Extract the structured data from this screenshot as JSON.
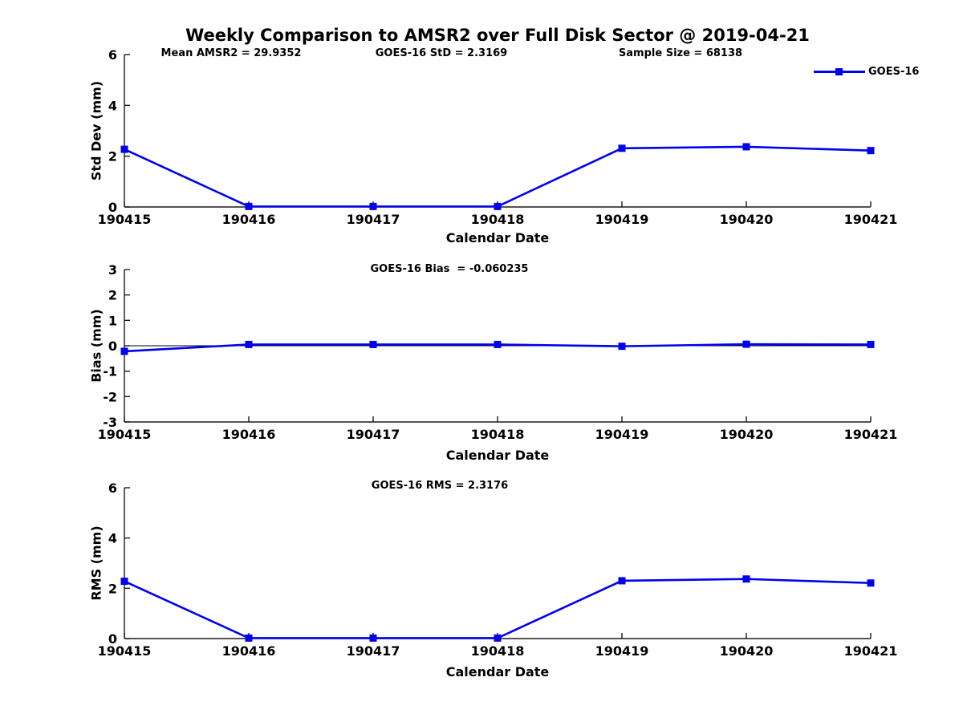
{
  "figure": {
    "title": "Weekly Comparison to AMSR2 over Full Disk Sector @ 2019-04-21"
  },
  "legend": {
    "label": "GOES-16"
  },
  "colors": {
    "line": "#0000ee",
    "marker": "#0000ee",
    "axis": "#1a1a1a",
    "zero_line": "#000000",
    "text": "#000000",
    "background": "#ffffff"
  },
  "chart_data": [
    {
      "type": "line",
      "categories": [
        "190415",
        "190416",
        "190417",
        "190418",
        "190419",
        "190420",
        "190421"
      ],
      "series": [
        {
          "name": "GOES-16",
          "values": [
            2.27,
            0.02,
            0.02,
            0.02,
            2.31,
            2.37,
            2.22
          ]
        }
      ],
      "xlabel": "Calendar Date",
      "ylabel": "Std Dev (mm)",
      "ylim": [
        0,
        6
      ],
      "yticks": [
        0,
        2,
        4,
        6
      ],
      "grid": false,
      "legend_position": "top-right",
      "zero_line": false,
      "annotations": [
        {
          "text": "Mean AMSR2 = 29.9352"
        },
        {
          "text": "GOES-16 StD = 2.3169"
        },
        {
          "text": "Sample Size = 68138"
        }
      ]
    },
    {
      "type": "line",
      "categories": [
        "190415",
        "190416",
        "190417",
        "190418",
        "190419",
        "190420",
        "190421"
      ],
      "series": [
        {
          "name": "GOES-16",
          "values": [
            -0.22,
            0.05,
            0.05,
            0.05,
            -0.02,
            0.06,
            0.05
          ]
        }
      ],
      "xlabel": "Calendar Date",
      "ylabel": "Bias (mm)",
      "ylim": [
        -3,
        3
      ],
      "yticks": [
        -3,
        -2,
        -1,
        0,
        1,
        2,
        3
      ],
      "grid": false,
      "legend_position": "none",
      "zero_line": true,
      "annotations": [
        {
          "text": "GOES-16 Bias  = -0.060235"
        }
      ]
    },
    {
      "type": "line",
      "categories": [
        "190415",
        "190416",
        "190417",
        "190418",
        "190419",
        "190420",
        "190421"
      ],
      "series": [
        {
          "name": "GOES-16",
          "values": [
            2.28,
            0.02,
            0.02,
            0.02,
            2.3,
            2.37,
            2.21
          ]
        }
      ],
      "xlabel": "Calendar Date",
      "ylabel": "RMS (mm)",
      "ylim": [
        0,
        6
      ],
      "yticks": [
        0,
        2,
        4,
        6
      ],
      "grid": false,
      "legend_position": "none",
      "zero_line": false,
      "annotations": [
        {
          "text": "GOES-16 RMS = 2.3176"
        }
      ]
    }
  ]
}
